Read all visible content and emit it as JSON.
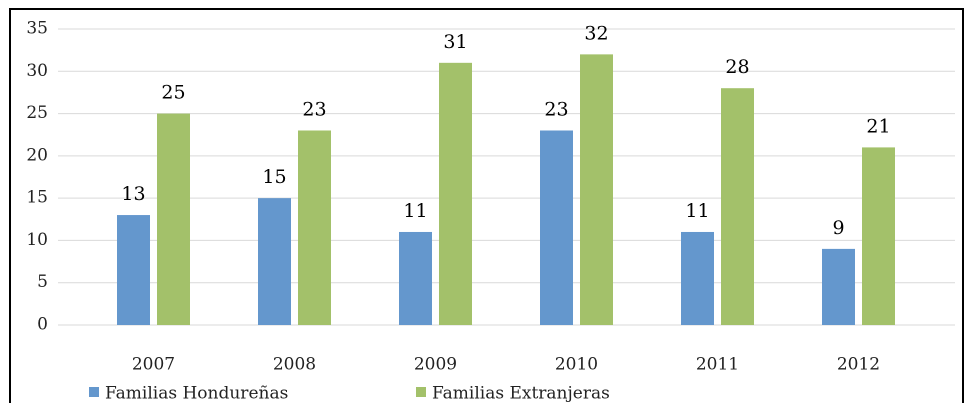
{
  "chart_data": {
    "type": "bar",
    "categories": [
      "2007",
      "2008",
      "2009",
      "2010",
      "2011",
      "2012"
    ],
    "series": [
      {
        "name": "Familias Hondureñas",
        "color": "#6497cd",
        "values": [
          13,
          15,
          11,
          23,
          11,
          9
        ]
      },
      {
        "name": "Familias Extranjeras",
        "color": "#a3c16a",
        "values": [
          25,
          23,
          31,
          32,
          28,
          21
        ]
      }
    ],
    "ylim": [
      0,
      35
    ],
    "yticks": [
      0,
      5,
      10,
      15,
      20,
      25,
      30,
      35
    ],
    "grid": true,
    "legend": "bottom"
  }
}
